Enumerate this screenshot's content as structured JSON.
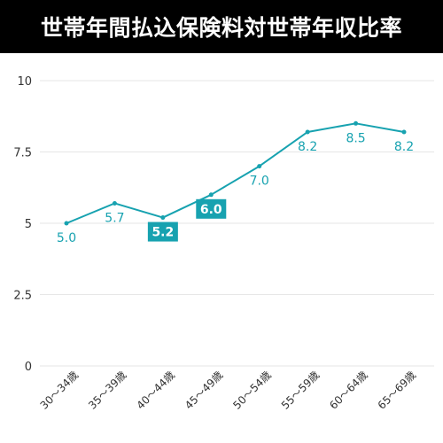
{
  "title": "世帯年間払込保険料対世帯年収比率",
  "colors": {
    "line": "#17a2b0",
    "highlight_bg": "#17a2b0",
    "highlight_text": "#ffffff",
    "grid": "#e6e6e6",
    "title_bg": "#000000",
    "title_text": "#ffffff"
  },
  "chart_data": {
    "type": "line",
    "title": "世帯年間払込保険料対世帯年収比率",
    "xlabel": "",
    "ylabel": "",
    "categories": [
      "30～34歳",
      "35～39歳",
      "40～44歳",
      "45～49歳",
      "50～54歳",
      "55～59歳",
      "60～64歳",
      "65～69歳"
    ],
    "series": [
      {
        "values": [
          5.0,
          5.7,
          5.2,
          6.0,
          7.0,
          8.2,
          8.5,
          8.2
        ]
      }
    ],
    "data_labels": [
      "5.0",
      "5.7",
      "5.2",
      "6.0",
      "7.0",
      "8.2",
      "8.5",
      "8.2"
    ],
    "highlighted_categories": [
      "40～44歳",
      "45～49歳"
    ],
    "ylim": [
      0,
      10
    ],
    "yticks": [
      "0",
      "2.5",
      "5",
      "7.5",
      "10"
    ],
    "ytick_values": [
      0,
      2.5,
      5,
      7.5,
      10
    ],
    "grid": true,
    "legend": "none"
  }
}
